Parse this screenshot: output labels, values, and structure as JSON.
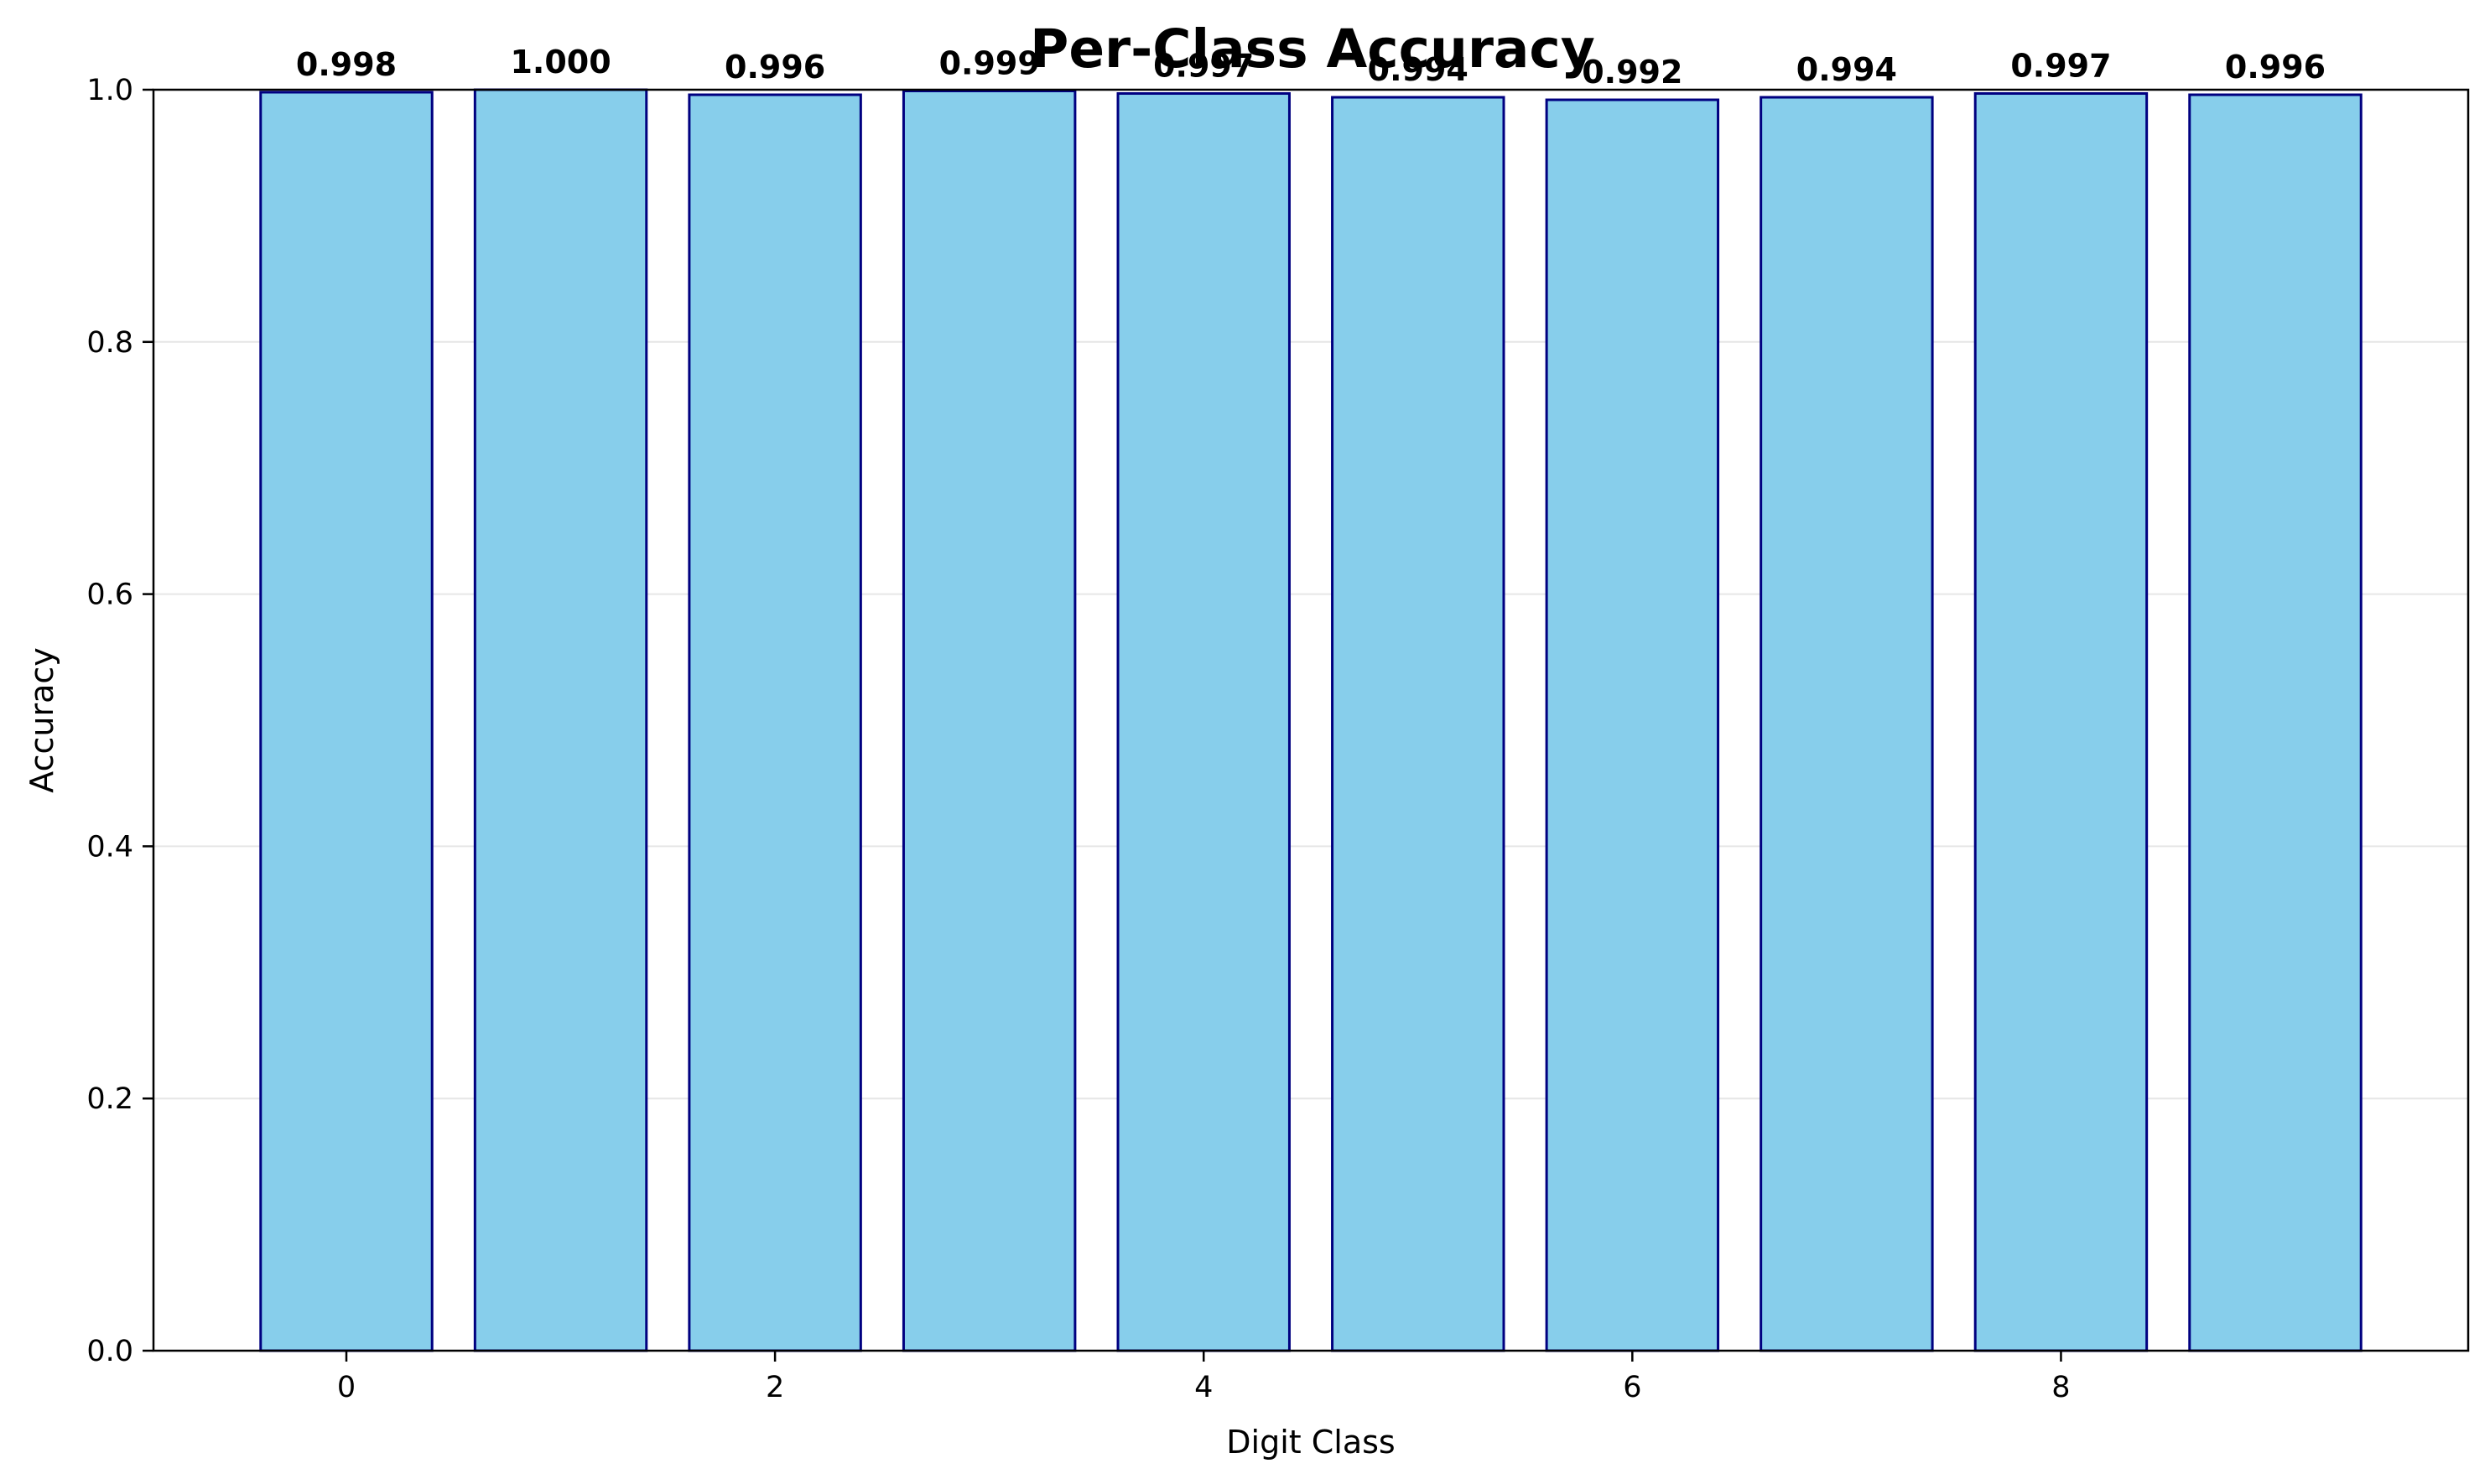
{
  "chart_data": {
    "type": "bar",
    "title": "Per-Class Accuracy",
    "xlabel": "Digit Class",
    "ylabel": "Accuracy",
    "categories": [
      0,
      1,
      2,
      3,
      4,
      5,
      6,
      7,
      8,
      9
    ],
    "values": [
      0.998,
      1.0,
      0.996,
      0.999,
      0.997,
      0.994,
      0.992,
      0.994,
      0.997,
      0.996
    ],
    "data_labels": [
      "0.998",
      "1.000",
      "0.996",
      "0.999",
      "0.997",
      "0.994",
      "0.992",
      "0.994",
      "0.997",
      "0.996"
    ],
    "xlim": [
      -0.9,
      9.9
    ],
    "ylim": [
      0,
      1.0
    ],
    "x_ticks": [
      0,
      2,
      4,
      6,
      8
    ],
    "x_tick_labels": [
      "0",
      "2",
      "4",
      "6",
      "8"
    ],
    "y_ticks": [
      0.0,
      0.2,
      0.4,
      0.6,
      0.8,
      1.0
    ],
    "y_tick_labels": [
      "0.0",
      "0.2",
      "0.4",
      "0.6",
      "0.8",
      "1.0"
    ],
    "bar_width": 0.8,
    "grid": "y",
    "legend": "none",
    "colors": {
      "bar_fill": "#87CEEB",
      "bar_edge": "#000080",
      "grid": "#e6e6e6",
      "axes": "#000000"
    }
  }
}
